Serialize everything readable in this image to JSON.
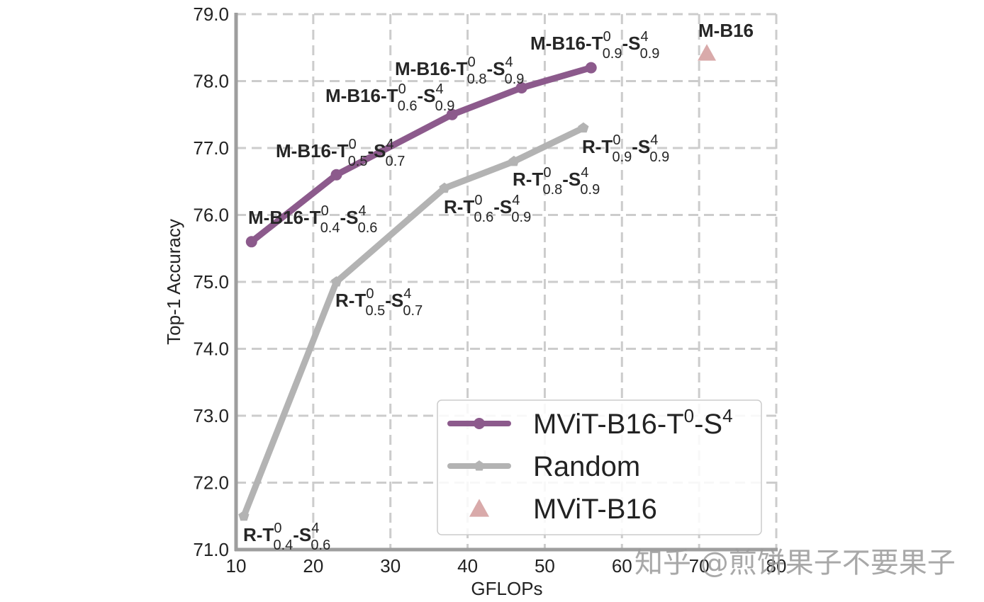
{
  "chart_data": {
    "type": "line",
    "title": "",
    "xlabel": "GFLOPs",
    "ylabel": "Top-1 Accuracy",
    "xlim": [
      10,
      80
    ],
    "ylim": [
      71.0,
      79.0
    ],
    "xticks": [
      "10",
      "20",
      "30",
      "40",
      "50",
      "60",
      "70",
      "80"
    ],
    "yticks": [
      "71.0",
      "72.0",
      "73.0",
      "74.0",
      "75.0",
      "76.0",
      "77.0",
      "78.0",
      "79.0"
    ],
    "grid": true,
    "legend_position": "lower right",
    "series": [
      {
        "name": "MViT-B16-T⁰-S⁴",
        "color": "#8c5a8c",
        "marker": "circle",
        "x": [
          12,
          23,
          38,
          47,
          56
        ],
        "y": [
          75.6,
          76.6,
          77.5,
          77.9,
          78.2
        ],
        "labels": [
          {
            "base": "M-B16-T",
            "t_sup": "0",
            "t_sub": "0.4",
            "s_sup": "4",
            "s_sub": "0.6"
          },
          {
            "base": "M-B16-T",
            "t_sup": "0",
            "t_sub": "0.5",
            "s_sup": "4",
            "s_sub": "0.7"
          },
          {
            "base": "M-B16-T",
            "t_sup": "0",
            "t_sub": "0.6",
            "s_sup": "4",
            "s_sub": "0.9"
          },
          {
            "base": "M-B16-T",
            "t_sup": "0",
            "t_sub": "0.8",
            "s_sup": "4",
            "s_sub": "0.9"
          },
          {
            "base": "M-B16-T",
            "t_sup": "0",
            "t_sub": "0.9",
            "s_sup": "4",
            "s_sub": "0.9"
          }
        ]
      },
      {
        "name": "Random",
        "color": "#b3b3b3",
        "marker": "pentagon",
        "x": [
          11,
          23,
          37,
          46,
          55
        ],
        "y": [
          71.5,
          75.0,
          76.4,
          76.8,
          77.3
        ],
        "labels": [
          {
            "base": "R-T",
            "t_sup": "0",
            "t_sub": "0.4",
            "s_sup": "4",
            "s_sub": "0.6"
          },
          {
            "base": "R-T",
            "t_sup": "0",
            "t_sub": "0.5",
            "s_sup": "4",
            "s_sub": "0.7"
          },
          {
            "base": "R-T",
            "t_sup": "0",
            "t_sub": "0.6",
            "s_sup": "4",
            "s_sub": "0.9"
          },
          {
            "base": "R-T",
            "t_sup": "0",
            "t_sub": "0.8",
            "s_sup": "4",
            "s_sub": "0.9"
          },
          {
            "base": "R-T",
            "t_sup": "0",
            "t_sub": "0.9",
            "s_sup": "4",
            "s_sub": "0.9"
          }
        ]
      },
      {
        "name": "MViT-B16",
        "color": "#d9aaaa",
        "marker": "triangle",
        "x": [
          71
        ],
        "y": [
          78.4
        ],
        "labels": [
          {
            "base": "M-B16"
          }
        ]
      }
    ],
    "legend": [
      {
        "label": "MViT-B16-T",
        "sup1": "0",
        "mid": "-S",
        "sup2": "4"
      },
      {
        "label": "Random"
      },
      {
        "label": "MViT-B16"
      }
    ]
  },
  "watermark": "知乎 @煎饼果子不要果子"
}
